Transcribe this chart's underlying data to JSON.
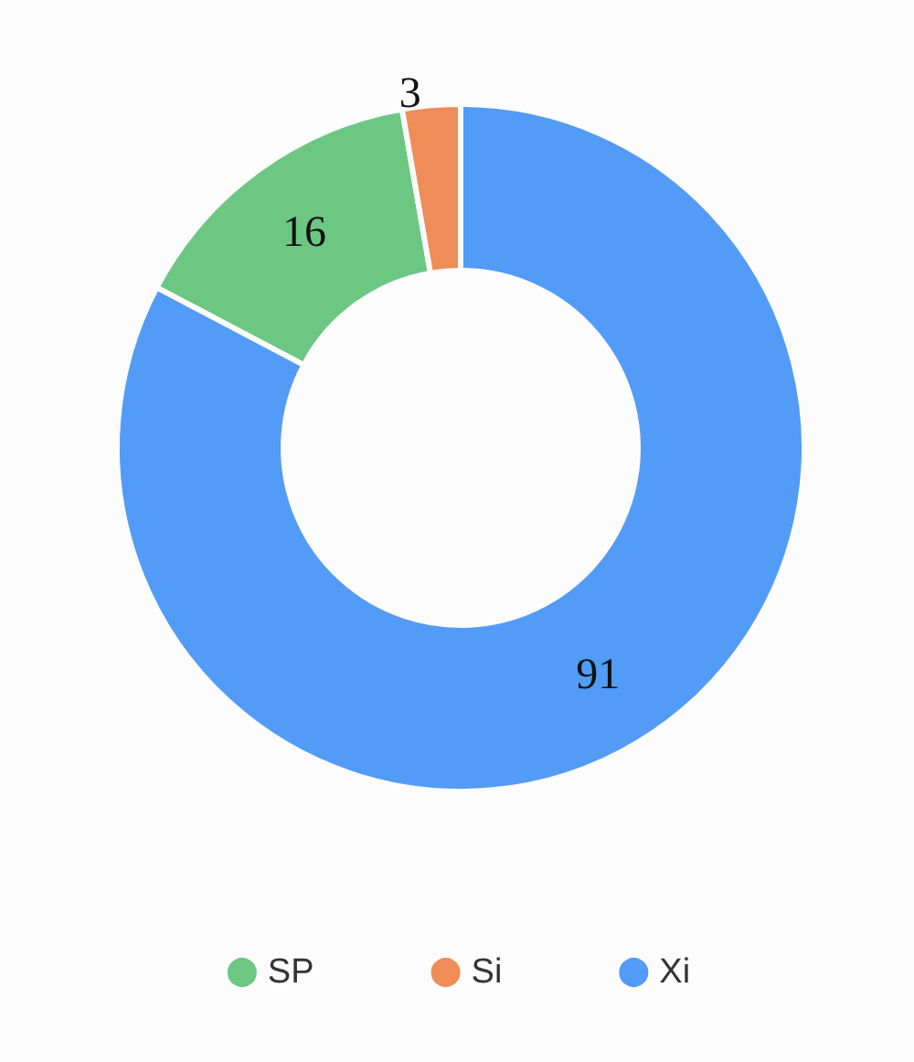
{
  "chart_data": {
    "type": "donut",
    "categories": [
      "SP",
      "Si",
      "Xi"
    ],
    "values": [
      16,
      3,
      91
    ],
    "colors": [
      "#6cc783",
      "#ef8c58",
      "#529bf7"
    ],
    "data_labels": true,
    "legend": "bottom"
  }
}
